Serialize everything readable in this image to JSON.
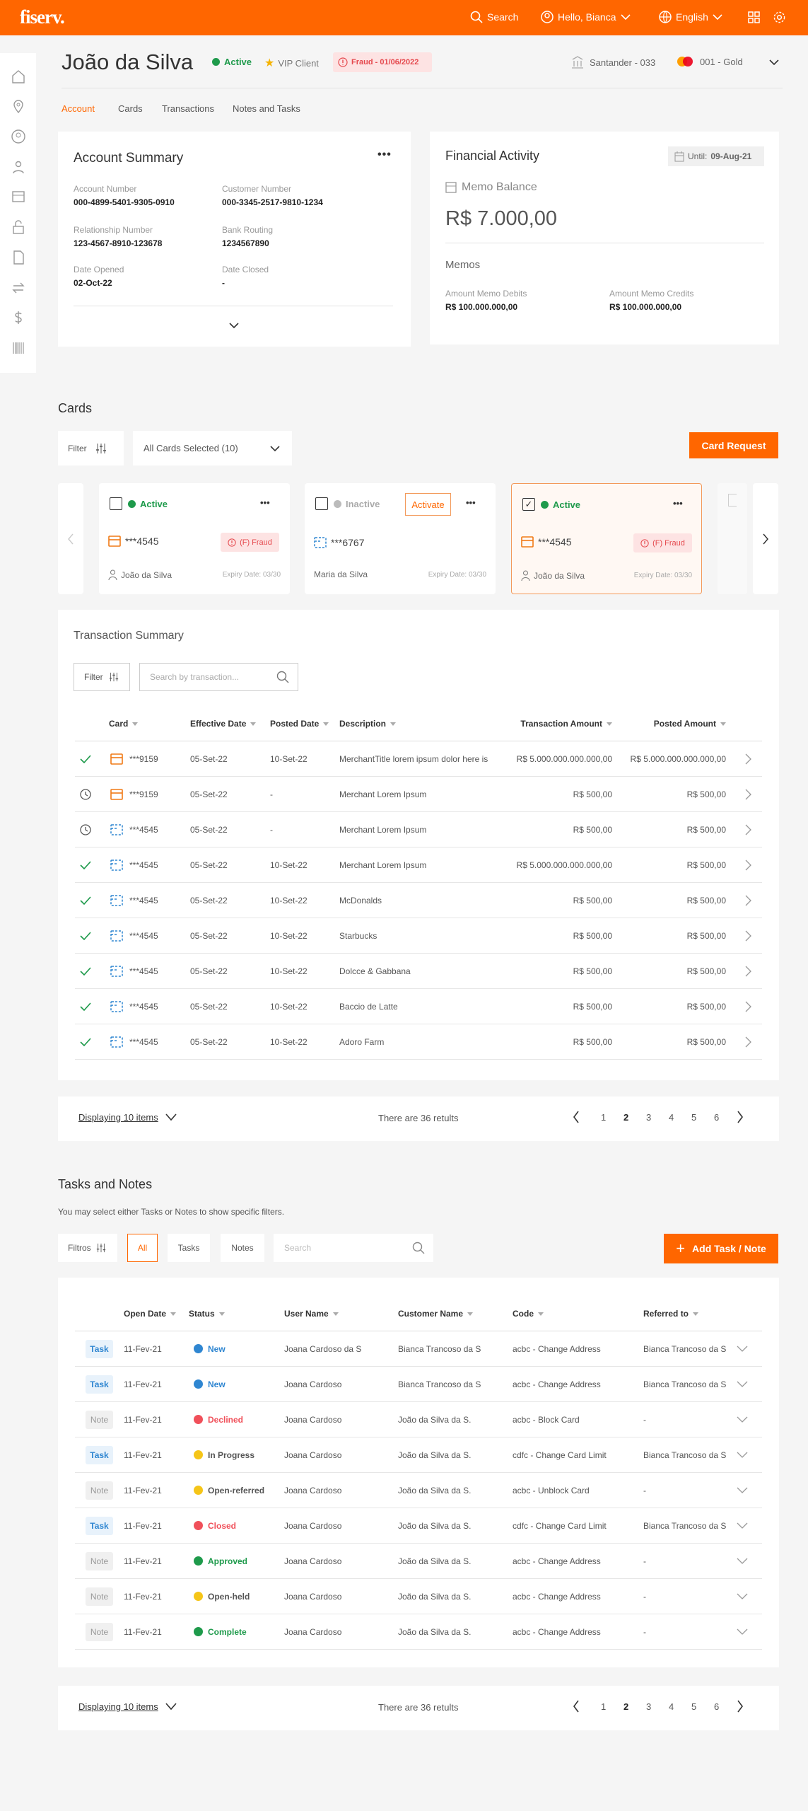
{
  "header": {
    "logo": "fiserv.",
    "search": "Search",
    "user": "Hello, Bianca",
    "language": "English",
    "brand_color": "#FF6600"
  },
  "client": {
    "name": "João da Silva",
    "status": "Active",
    "vip": "VIP Client",
    "fraud": "Fraud - 01/06/2022",
    "bank": "Santander - 033",
    "card_tier": "001 - Gold"
  },
  "tabs": [
    {
      "label": "Account",
      "active": true
    },
    {
      "label": "Cards"
    },
    {
      "label": "Transactions"
    },
    {
      "label": "Notes and Tasks"
    }
  ],
  "account_summary": {
    "title": "Account Summary",
    "fields": [
      {
        "label": "Account Number",
        "value": "000-4899-5401-9305-0910"
      },
      {
        "label": "Customer Number",
        "value": "000-3345-2517-9810-1234"
      },
      {
        "label": "Relationship Number",
        "value": "123-4567-8910-123678"
      },
      {
        "label": "Bank Routing",
        "value": "1234567890"
      },
      {
        "label": "Date Opened",
        "value": "02-Oct-22"
      },
      {
        "label": "Date Closed",
        "value": "-"
      }
    ]
  },
  "financial": {
    "title": "Financial Activity",
    "until_label": "Until:",
    "until_date": "09-Aug-21",
    "memo_balance_label": "Memo Balance",
    "memo_balance": "R$ 7.000,00",
    "memos_title": "Memos",
    "debits_label": "Amount Memo Debits",
    "debits": "R$ 100.000.000,00",
    "credits_label": "Amount Memo Credits",
    "credits": "R$ 100.000.000,00"
  },
  "cards": {
    "title": "Cards",
    "filter": "Filter",
    "selector": "All Cards Selected (10)",
    "request": "Card Request",
    "fraud_label": "(F) Fraud",
    "activate": "Activate",
    "expiry": "Expiry Date: 03/30",
    "items": [
      {
        "status": "Active",
        "number": "***4545",
        "holder": "João da Silva",
        "fraud": true,
        "checked": false,
        "selected": false,
        "type": "physical"
      },
      {
        "status": "Inactive",
        "number": "***6767",
        "holder": "Maria da Silva",
        "fraud": false,
        "checked": false,
        "selected": false,
        "type": "virtual"
      },
      {
        "status": "Active",
        "number": "***4545",
        "holder": "João da Silva",
        "fraud": true,
        "checked": true,
        "selected": true,
        "type": "physical"
      }
    ]
  },
  "transactions": {
    "title": "Transaction Summary",
    "filter": "Filter",
    "search_placeholder": "Search by transaction...",
    "columns": [
      "Card",
      "Effective Date",
      "Posted Date",
      "Description",
      "Transaction Amount",
      "Posted Amount"
    ],
    "rows": [
      {
        "state": "done",
        "type": "physical",
        "card": "***9159",
        "eff": "05-Set-22",
        "posted": "10-Set-22",
        "desc": "MerchantTitle lorem ipsum dolor here is",
        "amount": "R$ 5.000.000.000.000,00",
        "posted_amount": "R$ 5.000.000.000.000,00"
      },
      {
        "state": "pending",
        "type": "physical",
        "card": "***9159",
        "eff": "05-Set-22",
        "posted": "-",
        "desc": "Merchant Lorem Ipsum",
        "amount": "R$ 500,00",
        "posted_amount": "R$ 500,00"
      },
      {
        "state": "pending",
        "type": "virtual",
        "card": "***4545",
        "eff": "05-Set-22",
        "posted": "-",
        "desc": "Merchant Lorem Ipsum",
        "amount": "R$ 500,00",
        "posted_amount": "R$ 500,00"
      },
      {
        "state": "done",
        "type": "virtual",
        "card": "***4545",
        "eff": "05-Set-22",
        "posted": "10-Set-22",
        "desc": "Merchant Lorem Ipsum",
        "amount": "R$ 5.000.000.000.000,00",
        "posted_amount": "R$ 500,00"
      },
      {
        "state": "done",
        "type": "virtual",
        "card": "***4545",
        "eff": "05-Set-22",
        "posted": "10-Set-22",
        "desc": "McDonalds",
        "amount": "R$ 500,00",
        "posted_amount": "R$ 500,00"
      },
      {
        "state": "done",
        "type": "virtual",
        "card": "***4545",
        "eff": "05-Set-22",
        "posted": "10-Set-22",
        "desc": "Starbucks",
        "amount": "R$ 500,00",
        "posted_amount": "R$ 500,00"
      },
      {
        "state": "done",
        "type": "virtual",
        "card": "***4545",
        "eff": "05-Set-22",
        "posted": "10-Set-22",
        "desc": "Dolcce & Gabbana",
        "amount": "R$ 500,00",
        "posted_amount": "R$ 500,00"
      },
      {
        "state": "done",
        "type": "virtual",
        "card": "***4545",
        "eff": "05-Set-22",
        "posted": "10-Set-22",
        "desc": "Baccio de Latte",
        "amount": "R$ 500,00",
        "posted_amount": "R$ 500,00"
      },
      {
        "state": "done",
        "type": "virtual",
        "card": "***4545",
        "eff": "05-Set-22",
        "posted": "10-Set-22",
        "desc": "Adoro Farm",
        "amount": "R$ 500,00",
        "posted_amount": "R$ 500,00"
      }
    ]
  },
  "pagination": {
    "display": "Displaying 10 items",
    "results": "There are 36 retults",
    "pages": [
      "1",
      "2",
      "3",
      "4",
      "5",
      "6"
    ],
    "current": "2"
  },
  "tasks": {
    "title": "Tasks and Notes",
    "subtitle": "You may select either Tasks or Notes to show specific filters.",
    "filter": "Filtros",
    "all": "All",
    "tasks": "Tasks",
    "notes": "Notes",
    "search_placeholder": "Search",
    "add": "Add Task / Note",
    "columns": [
      "Open Date",
      "Status",
      "User Name",
      "Customer Name",
      "Code",
      "Referred to"
    ],
    "status_colors": {
      "New": "#2f86d1",
      "Declined": "#f0505a",
      "In Progress": "#f5c518",
      "Open-referred": "#f5c518",
      "Closed": "#f0505a",
      "Approved": "#1e9a4b",
      "Open-held": "#f5c518",
      "Complete": "#1e9a4b"
    },
    "rows": [
      {
        "kind": "Task",
        "date": "11-Fev-21",
        "status": "New",
        "user": "Joana Cardoso da S",
        "customer": "Bianca Trancoso da S",
        "code": "acbc - Change Address",
        "referred": "Bianca Trancoso da S"
      },
      {
        "kind": "Task",
        "date": "11-Fev-21",
        "status": "New",
        "user": "Joana Cardoso",
        "customer": "Bianca Trancoso da S",
        "code": "acbc - Change Address",
        "referred": "Bianca Trancoso da S"
      },
      {
        "kind": "Note",
        "date": "11-Fev-21",
        "status": "Declined",
        "user": "Joana Cardoso",
        "customer": "João da Silva da S.",
        "code": "acbc - Block Card",
        "referred": "-"
      },
      {
        "kind": "Task",
        "date": "11-Fev-21",
        "status": "In Progress",
        "user": "Joana Cardoso",
        "customer": "João da Silva da S.",
        "code": "cdfc - Change Card Limit",
        "referred": "Bianca Trancoso da S"
      },
      {
        "kind": "Note",
        "date": "11-Fev-21",
        "status": "Open-referred",
        "user": "Joana Cardoso",
        "customer": "João da Silva da S.",
        "code": "acbc - Unblock Card",
        "referred": "-"
      },
      {
        "kind": "Task",
        "date": "11-Fev-21",
        "status": "Closed",
        "user": "Joana Cardoso",
        "customer": "João da Silva da S.",
        "code": "cdfc - Change Card Limit",
        "referred": "Bianca Trancoso da S"
      },
      {
        "kind": "Note",
        "date": "11-Fev-21",
        "status": "Approved",
        "user": "Joana Cardoso",
        "customer": "João da Silva da S.",
        "code": "acbc - Change Address",
        "referred": "-"
      },
      {
        "kind": "Note",
        "date": "11-Fev-21",
        "status": "Open-held",
        "user": "Joana Cardoso",
        "customer": "João da Silva da S.",
        "code": "acbc - Change Address",
        "referred": "-"
      },
      {
        "kind": "Note",
        "date": "11-Fev-21",
        "status": "Complete",
        "user": "Joana Cardoso",
        "customer": "João da Silva da S.",
        "code": "acbc - Change Address",
        "referred": "-"
      }
    ]
  }
}
